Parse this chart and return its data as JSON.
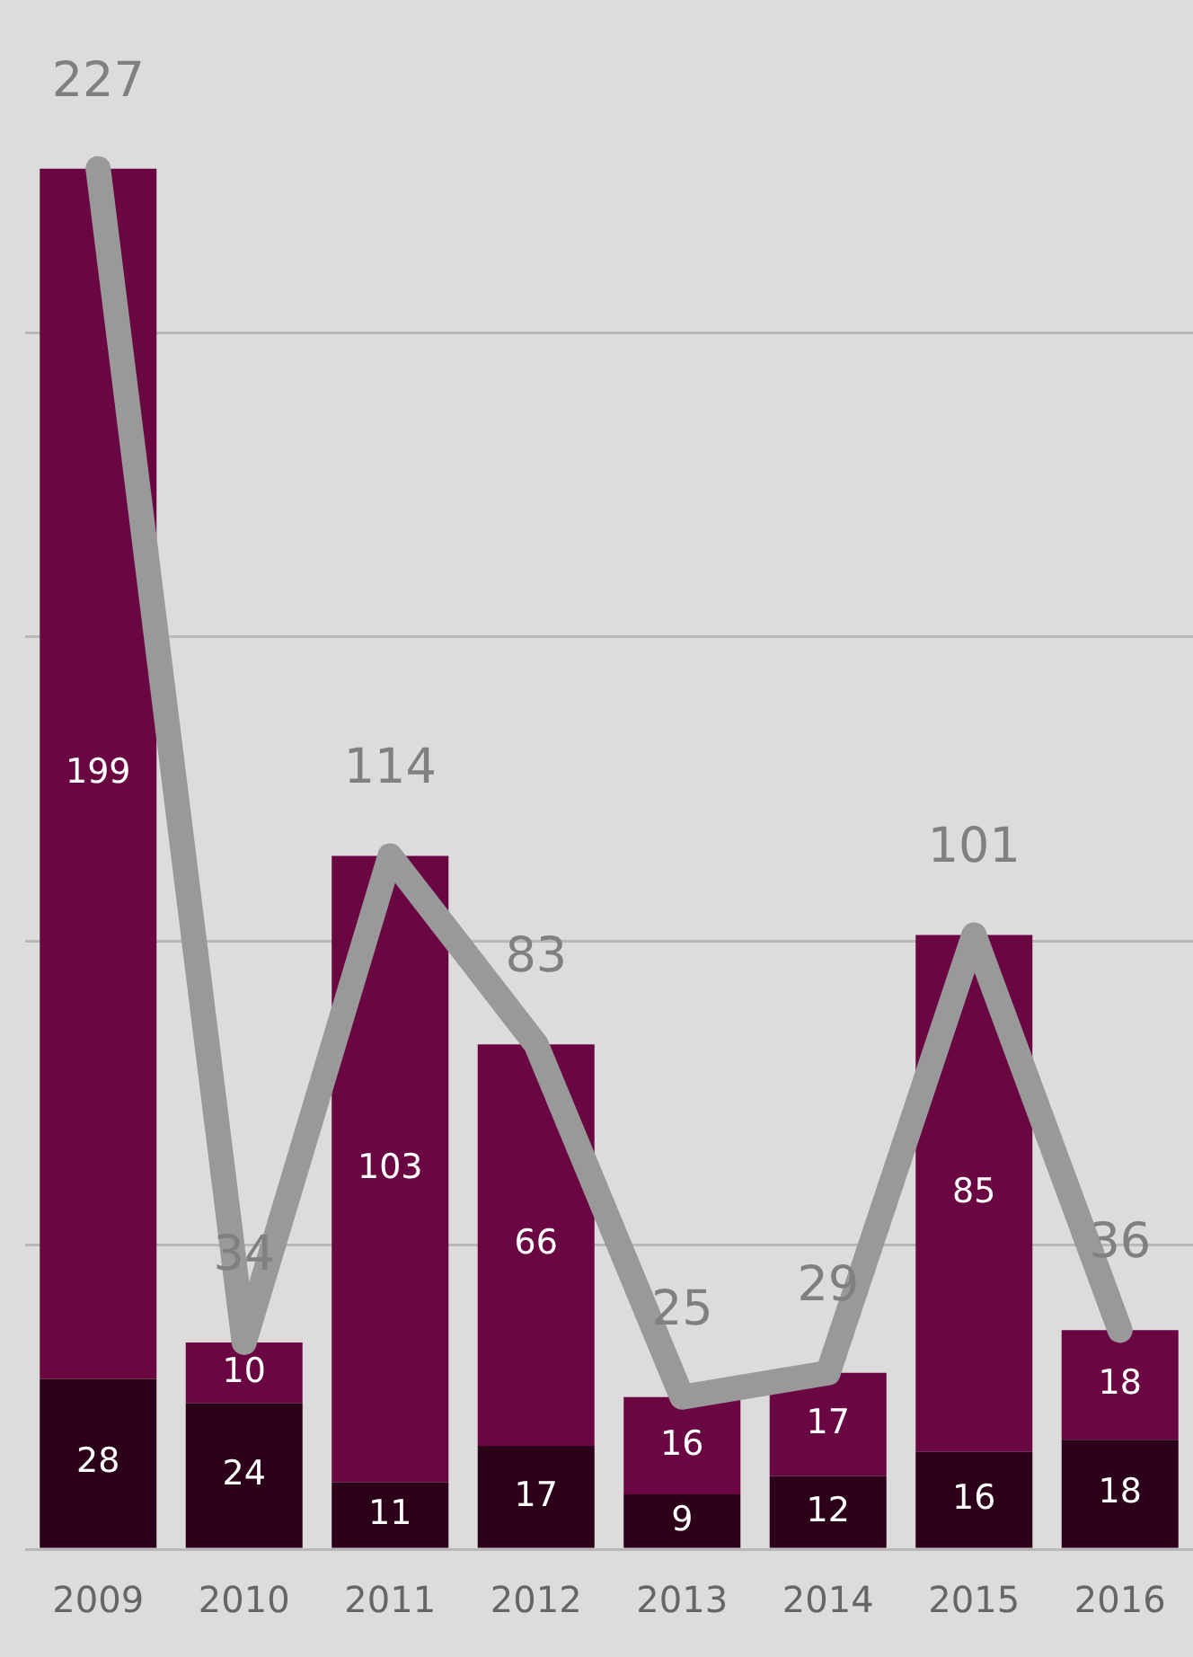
{
  "chart_data": {
    "type": "bar",
    "stacked": true,
    "categories": [
      "2009",
      "2010",
      "2011",
      "2012",
      "2013",
      "2014",
      "2015",
      "2016"
    ],
    "series": [
      {
        "color": "#2d0019",
        "values": [
          28,
          24,
          11,
          17,
          9,
          12,
          16,
          18
        ]
      },
      {
        "color": "#6a0742",
        "values": [
          199,
          10,
          103,
          66,
          16,
          17,
          85,
          18
        ]
      },
      {
        "type": "line",
        "color": "#999999",
        "values": [
          227,
          34,
          114,
          83,
          25,
          29,
          101,
          36
        ]
      }
    ],
    "yticks": [
      {
        "value": 0,
        "label": null
      },
      {
        "value": 50,
        "label": null
      },
      {
        "value": 100,
        "label": null
      },
      {
        "value": 150,
        "label": null
      },
      {
        "value": 200,
        "label": null
      }
    ],
    "tick_labels": "x",
    "grid": "y",
    "legend": false,
    "data_labels": true,
    "marker": "none"
  }
}
